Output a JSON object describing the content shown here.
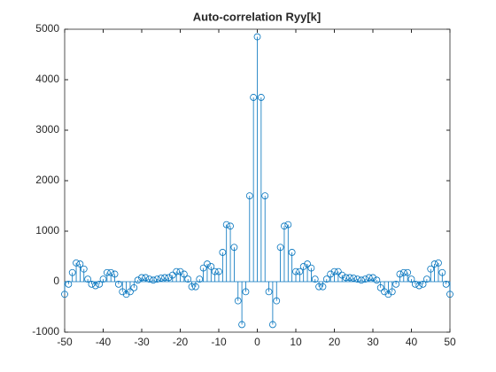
{
  "chart_data": {
    "type": "stem",
    "title": "Auto-correlation Ryy[k]",
    "x": [
      -50,
      -49,
      -48,
      -47,
      -46,
      -45,
      -44,
      -43,
      -42,
      -41,
      -40,
      -39,
      -38,
      -37,
      -36,
      -35,
      -34,
      -33,
      -32,
      -31,
      -30,
      -29,
      -28,
      -27,
      -26,
      -25,
      -24,
      -23,
      -22,
      -21,
      -20,
      -19,
      -18,
      -17,
      -16,
      -15,
      -14,
      -13,
      -12,
      -11,
      -10,
      -9,
      -8,
      -7,
      -6,
      -5,
      -4,
      -3,
      -2,
      -1,
      0,
      1,
      2,
      3,
      4,
      5,
      6,
      7,
      8,
      9,
      10,
      11,
      12,
      13,
      14,
      15,
      16,
      17,
      18,
      19,
      20,
      21,
      22,
      23,
      24,
      25,
      26,
      27,
      28,
      29,
      30,
      31,
      32,
      33,
      34,
      35,
      36,
      37,
      38,
      39,
      40,
      41,
      42,
      43,
      44,
      45,
      46,
      47,
      48,
      49,
      50
    ],
    "values": [
      -250,
      -50,
      180,
      370,
      350,
      250,
      50,
      -50,
      -80,
      -50,
      50,
      180,
      180,
      150,
      -50,
      -200,
      -250,
      -200,
      -120,
      30,
      80,
      80,
      50,
      30,
      50,
      70,
      80,
      80,
      130,
      200,
      200,
      150,
      50,
      -100,
      -100,
      50,
      270,
      350,
      300,
      200,
      200,
      580,
      1130,
      1100,
      680,
      -380,
      -850,
      -200,
      1700,
      3650,
      4850,
      3650,
      1700,
      -200,
      -850,
      -380,
      680,
      1100,
      1130,
      580,
      200,
      200,
      300,
      350,
      270,
      50,
      -100,
      -100,
      50,
      150,
      200,
      200,
      130,
      80,
      80,
      70,
      50,
      30,
      50,
      80,
      80,
      30,
      -120,
      -200,
      -250,
      -200,
      -50,
      150,
      180,
      180,
      50,
      -50,
      -80,
      -50,
      50,
      250,
      350,
      370,
      180,
      -50,
      -250
    ],
    "color": "#0072BD",
    "xlim": [
      -50,
      50
    ],
    "xticks": [
      -50,
      -40,
      -30,
      -20,
      -10,
      0,
      10,
      20,
      30,
      40,
      50
    ],
    "ylim": [
      -1000,
      5000
    ],
    "yticks": [
      -1000,
      0,
      1000,
      2000,
      3000,
      4000,
      5000
    ]
  }
}
